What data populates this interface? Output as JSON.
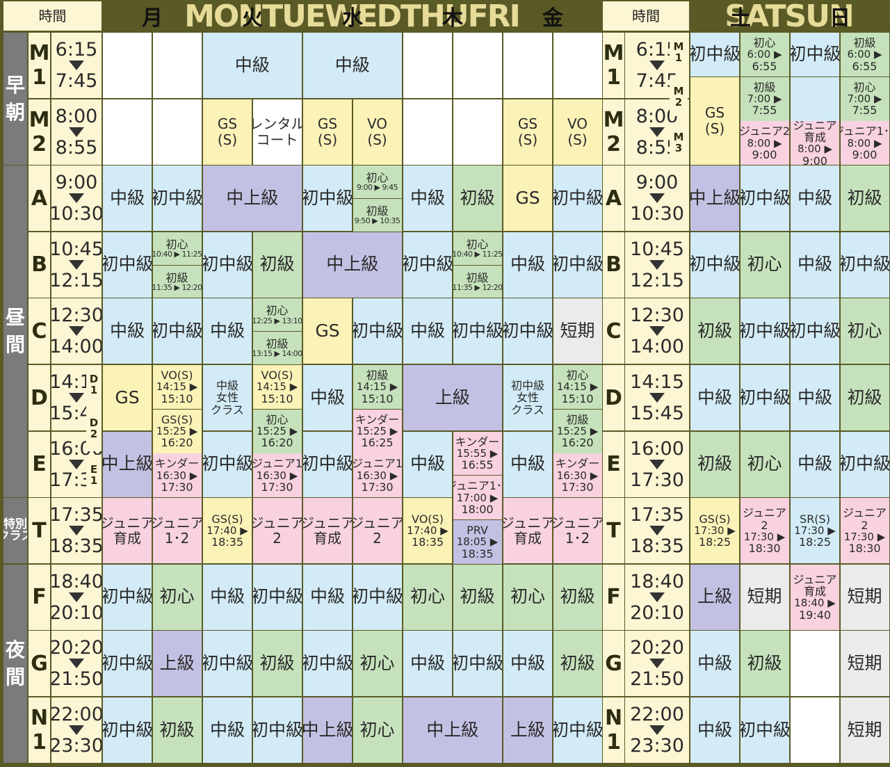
{
  "header": {
    "time_label": "時間",
    "banner_left": "MONTUEWEDTHUFRI",
    "banner_right": "SATSUN",
    "days": [
      "月",
      "火",
      "水",
      "木",
      "金",
      "土",
      "日"
    ]
  },
  "sections": {
    "early": "早\n朝",
    "day": "昼\n間",
    "special": "特別\nクラス",
    "night": "夜\n間"
  },
  "row_labels": {
    "M1": "M\n1",
    "M2": "M\n2",
    "A": "A",
    "B": "B",
    "C": "C",
    "D": "D",
    "E": "E",
    "T": "T",
    "F": "F",
    "G": "G",
    "N1": "N\n1",
    "D1": "D\n1",
    "D2": "D\n2",
    "E1": "E\n1",
    "sM1": "M\n1",
    "sM2": "M\n2",
    "sM3": "M\n3"
  },
  "times": {
    "M1": [
      "6:15",
      "7:45"
    ],
    "M2": [
      "8:00",
      "8:55"
    ],
    "A": [
      "9:00",
      "10:30"
    ],
    "B": [
      "10:45",
      "12:15"
    ],
    "C": [
      "12:30",
      "14:00"
    ],
    "D": [
      "14:15",
      "15:45"
    ],
    "E": [
      "16:00",
      "17:30"
    ],
    "T": [
      "17:35",
      "18:35"
    ],
    "F": [
      "18:40",
      "20:10"
    ],
    "G": [
      "20:20",
      "21:50"
    ],
    "N1": [
      "22:00",
      "23:30"
    ]
  },
  "colors": {
    "white": "#ffffff",
    "blue": "#d2ebf6",
    "green": "#c6e2bc",
    "purple": "#c3c1e3",
    "yellow": "#fbf2b8",
    "pink": "#f8d2e0",
    "gray": "#ebebeb",
    "cream": "#fdf6d4"
  },
  "cells": [
    {
      "c": 1,
      "r": "M1",
      "h": 1,
      "text": "",
      "color": "white"
    },
    {
      "c": 2,
      "r": "M1",
      "h": 1,
      "text": "",
      "color": "white"
    },
    {
      "c": 1,
      "r": "M2",
      "h": 1,
      "text": "",
      "color": "white"
    },
    {
      "c": 2,
      "r": "M2",
      "h": 1,
      "text": "",
      "color": "white"
    },
    {
      "c": 1,
      "r": "A",
      "h": 1,
      "text": "中級",
      "color": "blue"
    },
    {
      "c": 2,
      "r": "A",
      "h": 1,
      "text": "初中級",
      "color": "blue"
    },
    {
      "c": 1,
      "r": "B",
      "h": 1,
      "text": "初中級",
      "color": "blue"
    },
    {
      "c": 2,
      "r": "B",
      "h": 0.5,
      "text": "初心\n10:40 ▶ 11:25",
      "color": "green"
    },
    {
      "c": 2,
      "r": "B",
      "h": 0.5,
      "off": 0.5,
      "text": "初級\n11:35 ▶ 12:20",
      "color": "green"
    },
    {
      "c": 1,
      "r": "C",
      "h": 1,
      "text": "中級",
      "color": "blue"
    },
    {
      "c": 2,
      "r": "C",
      "h": 1,
      "text": "初中級",
      "color": "blue"
    },
    {
      "c": 1,
      "r": "D",
      "h": 1,
      "text": "GS",
      "color": "yellow"
    },
    {
      "c": 2,
      "r": "D",
      "h": 0.667,
      "text": "VO(S)\n14:15 ▶\n15:10",
      "color": "yellow"
    },
    {
      "c": 2,
      "r": "D",
      "h": 0.667,
      "off": 0.667,
      "text": "GS(S)\n15:25 ▶\n16:20",
      "color": "yellow"
    },
    {
      "c": 1,
      "r": "E",
      "h": 1,
      "text": "中上級",
      "color": "purple"
    },
    {
      "c": 2,
      "r": "E",
      "h": 0.667,
      "off": 0.333,
      "text": "キンダー\n16:30 ▶\n17:30",
      "color": "pink"
    },
    {
      "c": 1,
      "r": "T",
      "h": 1,
      "text": "ジュニア\n育成",
      "color": "pink"
    },
    {
      "c": 2,
      "r": "T",
      "h": 1,
      "text": "ジュニア\n1･2",
      "color": "pink"
    },
    {
      "c": 1,
      "r": "F",
      "h": 1,
      "text": "初中級",
      "color": "blue"
    },
    {
      "c": 2,
      "r": "F",
      "h": 1,
      "text": "初心",
      "color": "green"
    },
    {
      "c": 1,
      "r": "G",
      "h": 1,
      "text": "初中級",
      "color": "blue"
    },
    {
      "c": 2,
      "r": "G",
      "h": 1,
      "text": "上級",
      "color": "purple"
    },
    {
      "c": 1,
      "r": "N1",
      "h": 1,
      "text": "初中級",
      "color": "blue"
    },
    {
      "c": 2,
      "r": "N1",
      "h": 1,
      "text": "初級",
      "color": "green"
    },
    {
      "c": 3,
      "r": "M1",
      "h": 1,
      "w": 2,
      "text": "中級",
      "color": "blue"
    },
    {
      "c": 3,
      "r": "M2",
      "h": 1,
      "text": "GS\n(S)",
      "color": "yellow"
    },
    {
      "c": 4,
      "r": "M2",
      "h": 1,
      "text": "レンタル\nコート",
      "color": "white"
    },
    {
      "c": 3,
      "r": "A",
      "h": 1,
      "w": 2,
      "text": "中上級",
      "color": "purple"
    },
    {
      "c": 3,
      "r": "B",
      "h": 1,
      "text": "初中級",
      "color": "blue"
    },
    {
      "c": 4,
      "r": "B",
      "h": 1,
      "text": "初級",
      "color": "green"
    },
    {
      "c": 3,
      "r": "C",
      "h": 1,
      "text": "中級",
      "color": "blue"
    },
    {
      "c": 4,
      "r": "C",
      "h": 0.5,
      "text": "初心\n12:25 ▶ 13:10",
      "color": "green"
    },
    {
      "c": 4,
      "r": "C",
      "h": 0.5,
      "off": 0.5,
      "text": "初級\n13:15 ▶ 14:00",
      "color": "green"
    },
    {
      "c": 3,
      "r": "D",
      "h": 1,
      "text": "中級\n女性\nクラス",
      "color": "blue"
    },
    {
      "c": 4,
      "r": "D",
      "h": 0.667,
      "text": "VO(S)\n14:15 ▶\n15:10",
      "color": "yellow"
    },
    {
      "c": 4,
      "r": "D",
      "h": 0.667,
      "off": 0.667,
      "text": "初心\n15:25 ▶\n16:20",
      "color": "green"
    },
    {
      "c": 3,
      "r": "E",
      "h": 1,
      "text": "初中級",
      "color": "blue"
    },
    {
      "c": 4,
      "r": "E",
      "h": 0.667,
      "off": 0.333,
      "text": "ジュニア1\n16:30 ▶\n17:30",
      "color": "pink"
    },
    {
      "c": 3,
      "r": "T",
      "h": 1,
      "text": "GS(S)\n17:40 ▶\n18:35",
      "color": "yellow"
    },
    {
      "c": 4,
      "r": "T",
      "h": 1,
      "text": "ジュニア\n2",
      "color": "pink"
    },
    {
      "c": 3,
      "r": "F",
      "h": 1,
      "text": "中級",
      "color": "blue"
    },
    {
      "c": 4,
      "r": "F",
      "h": 1,
      "text": "初中級",
      "color": "blue"
    },
    {
      "c": 3,
      "r": "G",
      "h": 1,
      "text": "初中級",
      "color": "blue"
    },
    {
      "c": 4,
      "r": "G",
      "h": 1,
      "text": "初級",
      "color": "green"
    },
    {
      "c": 3,
      "r": "N1",
      "h": 1,
      "text": "中級",
      "color": "blue"
    },
    {
      "c": 4,
      "r": "N1",
      "h": 1,
      "text": "初中級",
      "color": "blue"
    },
    {
      "c": 5,
      "r": "M1",
      "h": 1,
      "w": 2,
      "text": "中級",
      "color": "blue"
    },
    {
      "c": 5,
      "r": "M2",
      "h": 1,
      "text": "GS\n(S)",
      "color": "yellow"
    },
    {
      "c": 6,
      "r": "M2",
      "h": 1,
      "text": "VO\n(S)",
      "color": "yellow"
    },
    {
      "c": 5,
      "r": "A",
      "h": 1,
      "text": "初中級",
      "color": "blue"
    },
    {
      "c": 6,
      "r": "A",
      "h": 0.5,
      "text": "初心\n9:00 ▶ 9:45",
      "color": "green"
    },
    {
      "c": 6,
      "r": "A",
      "h": 0.5,
      "off": 0.5,
      "text": "初級\n9:50 ▶ 10:35",
      "color": "green"
    },
    {
      "c": 5,
      "r": "B",
      "h": 1,
      "w": 2,
      "text": "中上級",
      "color": "purple"
    },
    {
      "c": 5,
      "r": "C",
      "h": 1,
      "text": "GS",
      "color": "yellow"
    },
    {
      "c": 6,
      "r": "C",
      "h": 1,
      "text": "初中級",
      "color": "blue"
    },
    {
      "c": 5,
      "r": "D",
      "h": 1,
      "text": "中級",
      "color": "blue"
    },
    {
      "c": 6,
      "r": "D",
      "h": 0.667,
      "text": "初級\n14:15 ▶\n15:10",
      "color": "green"
    },
    {
      "c": 6,
      "r": "D",
      "h": 0.667,
      "off": 0.667,
      "text": "キンダー\n15:25 ▶\n16:25",
      "color": "pink"
    },
    {
      "c": 5,
      "r": "E",
      "h": 1,
      "text": "初中級",
      "color": "blue"
    },
    {
      "c": 6,
      "r": "E",
      "h": 0.667,
      "off": 0.333,
      "text": "ジュニア1\n16:30 ▶\n17:30",
      "color": "pink"
    },
    {
      "c": 5,
      "r": "T",
      "h": 1,
      "text": "ジュニア\n育成",
      "color": "pink"
    },
    {
      "c": 6,
      "r": "T",
      "h": 1,
      "text": "ジュニア\n2",
      "color": "pink"
    },
    {
      "c": 5,
      "r": "F",
      "h": 1,
      "text": "中級",
      "color": "blue"
    },
    {
      "c": 6,
      "r": "F",
      "h": 1,
      "text": "初中級",
      "color": "blue"
    },
    {
      "c": 5,
      "r": "G",
      "h": 1,
      "text": "初中級",
      "color": "blue"
    },
    {
      "c": 6,
      "r": "G",
      "h": 1,
      "text": "初心",
      "color": "green"
    },
    {
      "c": 5,
      "r": "N1",
      "h": 1,
      "text": "中上級",
      "color": "purple"
    },
    {
      "c": 6,
      "r": "N1",
      "h": 1,
      "text": "初心",
      "color": "green"
    },
    {
      "c": 7,
      "r": "M1",
      "h": 1,
      "text": "",
      "color": "white"
    },
    {
      "c": 8,
      "r": "M1",
      "h": 1,
      "text": "",
      "color": "white"
    },
    {
      "c": 7,
      "r": "M2",
      "h": 1,
      "text": "",
      "color": "white"
    },
    {
      "c": 8,
      "r": "M2",
      "h": 1,
      "text": "",
      "color": "white"
    },
    {
      "c": 7,
      "r": "A",
      "h": 1,
      "text": "中級",
      "color": "blue"
    },
    {
      "c": 8,
      "r": "A",
      "h": 1,
      "text": "初級",
      "color": "green"
    },
    {
      "c": 7,
      "r": "B",
      "h": 1,
      "text": "初中級",
      "color": "blue"
    },
    {
      "c": 8,
      "r": "B",
      "h": 0.5,
      "text": "初心\n10:40 ▶ 11:25",
      "color": "green"
    },
    {
      "c": 8,
      "r": "B",
      "h": 0.5,
      "off": 0.5,
      "text": "初級\n11:35 ▶ 12:20",
      "color": "green"
    },
    {
      "c": 7,
      "r": "C",
      "h": 1,
      "text": "中級",
      "color": "blue"
    },
    {
      "c": 8,
      "r": "C",
      "h": 1,
      "text": "初中級",
      "color": "blue"
    },
    {
      "c": 7,
      "r": "D",
      "h": 1,
      "w": 2,
      "text": "上級",
      "color": "purple"
    },
    {
      "c": 7,
      "r": "E",
      "h": 1,
      "text": "中級",
      "color": "blue"
    },
    {
      "c": 8,
      "r": "E",
      "h": 0.667,
      "text": "キンダー\n15:55 ▶\n16:55",
      "color": "pink"
    },
    {
      "c": 8,
      "r": "E",
      "h": 0.667,
      "off": 0.667,
      "text": "ジュニア1･2\n17:00 ▶\n18:00",
      "color": "pink"
    },
    {
      "c": 7,
      "r": "T",
      "h": 1,
      "text": "VO(S)\n17:40 ▶\n18:35",
      "color": "yellow"
    },
    {
      "c": 8,
      "r": "T",
      "h": 0.667,
      "off": 0.333,
      "text": "PRV\n18:05 ▶\n18:35",
      "color": "purple"
    },
    {
      "c": 7,
      "r": "F",
      "h": 1,
      "text": "初心",
      "color": "green"
    },
    {
      "c": 8,
      "r": "F",
      "h": 1,
      "text": "初級",
      "color": "green"
    },
    {
      "c": 7,
      "r": "G",
      "h": 1,
      "text": "中級",
      "color": "blue"
    },
    {
      "c": 8,
      "r": "G",
      "h": 1,
      "text": "初中級",
      "color": "blue"
    },
    {
      "c": 7,
      "r": "N1",
      "h": 1,
      "w": 2,
      "text": "中上級",
      "color": "purple"
    },
    {
      "c": 9,
      "r": "M1",
      "h": 1,
      "text": "",
      "color": "white"
    },
    {
      "c": 10,
      "r": "M1",
      "h": 1,
      "text": "",
      "color": "white"
    },
    {
      "c": 9,
      "r": "M2",
      "h": 1,
      "text": "GS\n(S)",
      "color": "yellow"
    },
    {
      "c": 10,
      "r": "M2",
      "h": 1,
      "text": "VO\n(S)",
      "color": "yellow"
    },
    {
      "c": 9,
      "r": "A",
      "h": 1,
      "text": "GS",
      "color": "yellow"
    },
    {
      "c": 10,
      "r": "A",
      "h": 1,
      "text": "初中級",
      "color": "blue"
    },
    {
      "c": 9,
      "r": "B",
      "h": 1,
      "text": "中級",
      "color": "blue"
    },
    {
      "c": 10,
      "r": "B",
      "h": 1,
      "text": "初中級",
      "color": "blue"
    },
    {
      "c": 9,
      "r": "C",
      "h": 1,
      "text": "初中級",
      "color": "blue"
    },
    {
      "c": 10,
      "r": "C",
      "h": 1,
      "text": "短期",
      "color": "gray"
    },
    {
      "c": 9,
      "r": "D",
      "h": 1,
      "text": "初中級\n女性\nクラス",
      "color": "blue"
    },
    {
      "c": 10,
      "r": "D",
      "h": 0.667,
      "text": "初心\n14:15 ▶\n15:10",
      "color": "green"
    },
    {
      "c": 10,
      "r": "D",
      "h": 0.667,
      "off": 0.667,
      "text": "初級\n15:25 ▶\n16:20",
      "color": "green"
    },
    {
      "c": 9,
      "r": "E",
      "h": 1,
      "text": "中級",
      "color": "blue"
    },
    {
      "c": 10,
      "r": "E",
      "h": 0.667,
      "off": 0.333,
      "text": "キンダー\n16:30 ▶\n17:30",
      "color": "pink"
    },
    {
      "c": 9,
      "r": "T",
      "h": 1,
      "text": "ジュニア\n育成",
      "color": "pink"
    },
    {
      "c": 10,
      "r": "T",
      "h": 1,
      "text": "ジュニア\n1･2",
      "color": "pink"
    },
    {
      "c": 9,
      "r": "F",
      "h": 1,
      "text": "初心",
      "color": "green"
    },
    {
      "c": 10,
      "r": "F",
      "h": 1,
      "text": "初級",
      "color": "green"
    },
    {
      "c": 9,
      "r": "G",
      "h": 1,
      "text": "中級",
      "color": "blue"
    },
    {
      "c": 10,
      "r": "G",
      "h": 1,
      "text": "初級",
      "color": "green"
    },
    {
      "c": 9,
      "r": "N1",
      "h": 1,
      "text": "上級",
      "color": "purple"
    },
    {
      "c": 10,
      "r": "N1",
      "h": 1,
      "text": "初中級",
      "color": "blue"
    },
    {
      "c": 13,
      "r": "M1",
      "h": 0.667,
      "text": "初中級",
      "color": "blue"
    },
    {
      "c": 14,
      "r": "M1",
      "h": 0.667,
      "text": "初心\n6:00 ▶\n6:55",
      "color": "green"
    },
    {
      "c": 13,
      "r": "M1",
      "h": 1.333,
      "off": 0.667,
      "text": "GS\n(S)",
      "color": "yellow"
    },
    {
      "c": 14,
      "r": "M1",
      "h": 0.667,
      "off": 0.667,
      "text": "初級\n7:00 ▶\n7:55",
      "color": "green"
    },
    {
      "c": 14,
      "r": "M1",
      "h": 0.667,
      "off": 1.333,
      "text": "ジュニア2\n8:00 ▶\n9:00",
      "color": "pink"
    },
    {
      "c": 13,
      "r": "A",
      "h": 1,
      "text": "中上級",
      "color": "purple"
    },
    {
      "c": 14,
      "r": "A",
      "h": 1,
      "text": "初中級",
      "color": "blue"
    },
    {
      "c": 13,
      "r": "B",
      "h": 1,
      "text": "初中級",
      "color": "blue"
    },
    {
      "c": 14,
      "r": "B",
      "h": 1,
      "text": "初心",
      "color": "green"
    },
    {
      "c": 13,
      "r": "C",
      "h": 1,
      "text": "初級",
      "color": "green"
    },
    {
      "c": 14,
      "r": "C",
      "h": 1,
      "text": "初中級",
      "color": "blue"
    },
    {
      "c": 13,
      "r": "D",
      "h": 1,
      "text": "中級",
      "color": "blue"
    },
    {
      "c": 14,
      "r": "D",
      "h": 1,
      "text": "初中級",
      "color": "blue"
    },
    {
      "c": 13,
      "r": "E",
      "h": 1,
      "text": "初級",
      "color": "green"
    },
    {
      "c": 14,
      "r": "E",
      "h": 1,
      "text": "初心",
      "color": "green"
    },
    {
      "c": 13,
      "r": "T",
      "h": 1,
      "text": "GS(S)\n17:30 ▶\n18:25",
      "color": "yellow"
    },
    {
      "c": 14,
      "r": "T",
      "h": 1,
      "text": "ジュニア\n2\n17:30 ▶\n18:30",
      "color": "pink"
    },
    {
      "c": 13,
      "r": "F",
      "h": 1,
      "text": "上級",
      "color": "purple"
    },
    {
      "c": 14,
      "r": "F",
      "h": 1,
      "text": "短期",
      "color": "gray"
    },
    {
      "c": 13,
      "r": "G",
      "h": 1,
      "text": "中級",
      "color": "blue"
    },
    {
      "c": 14,
      "r": "G",
      "h": 1,
      "text": "初級",
      "color": "green"
    },
    {
      "c": 13,
      "r": "N1",
      "h": 1,
      "text": "中級",
      "color": "blue"
    },
    {
      "c": 14,
      "r": "N1",
      "h": 1,
      "text": "初中級",
      "color": "blue"
    },
    {
      "c": 15,
      "r": "M1",
      "h": 0.667,
      "text": "初中級",
      "color": "blue"
    },
    {
      "c": 16,
      "r": "M1",
      "h": 0.667,
      "text": "初級\n6:00 ▶\n6:55",
      "color": "green"
    },
    {
      "c": 15,
      "r": "M1",
      "h": 0.667,
      "off": 0.667,
      "text": "",
      "color": "blue"
    },
    {
      "c": 16,
      "r": "M1",
      "h": 0.667,
      "off": 0.667,
      "text": "初心\n7:00 ▶\n7:55",
      "color": "green"
    },
    {
      "c": 15,
      "r": "M1",
      "h": 0.667,
      "off": 1.333,
      "text": "ジュニア\n育成\n8:00 ▶\n9:00",
      "color": "pink"
    },
    {
      "c": 16,
      "r": "M1",
      "h": 0.667,
      "off": 1.333,
      "text": "ジュニア1･2\n8:00 ▶\n9:00",
      "color": "pink"
    },
    {
      "c": 15,
      "r": "A",
      "h": 1,
      "text": "中級",
      "color": "blue"
    },
    {
      "c": 16,
      "r": "A",
      "h": 1,
      "text": "初級",
      "color": "green"
    },
    {
      "c": 15,
      "r": "B",
      "h": 1,
      "text": "中級",
      "color": "blue"
    },
    {
      "c": 16,
      "r": "B",
      "h": 1,
      "text": "初中級",
      "color": "blue"
    },
    {
      "c": 15,
      "r": "C",
      "h": 1,
      "text": "初中級",
      "color": "blue"
    },
    {
      "c": 16,
      "r": "C",
      "h": 1,
      "text": "初心",
      "color": "green"
    },
    {
      "c": 15,
      "r": "D",
      "h": 1,
      "text": "中級",
      "color": "blue"
    },
    {
      "c": 16,
      "r": "D",
      "h": 1,
      "text": "初級",
      "color": "green"
    },
    {
      "c": 15,
      "r": "E",
      "h": 1,
      "text": "中級",
      "color": "blue"
    },
    {
      "c": 16,
      "r": "E",
      "h": 1,
      "text": "初中級",
      "color": "blue"
    },
    {
      "c": 15,
      "r": "T",
      "h": 1,
      "text": "SR(S)\n17:30 ▶\n18:25",
      "color": "blue"
    },
    {
      "c": 16,
      "r": "T",
      "h": 1,
      "text": "ジュニア\n2\n17:30 ▶\n18:30",
      "color": "pink"
    },
    {
      "c": 15,
      "r": "F",
      "h": 1,
      "text": "ジュニア\n育成\n18:40 ▶\n19:40",
      "color": "pink"
    },
    {
      "c": 16,
      "r": "F",
      "h": 1,
      "text": "短期",
      "color": "gray"
    },
    {
      "c": 15,
      "r": "G",
      "h": 1,
      "text": "",
      "color": "white"
    },
    {
      "c": 16,
      "r": "G",
      "h": 1,
      "text": "短期",
      "color": "gray"
    },
    {
      "c": 15,
      "r": "N1",
      "h": 1,
      "text": "",
      "color": "white"
    },
    {
      "c": 16,
      "r": "N1",
      "h": 1,
      "text": "短期",
      "color": "gray"
    }
  ]
}
